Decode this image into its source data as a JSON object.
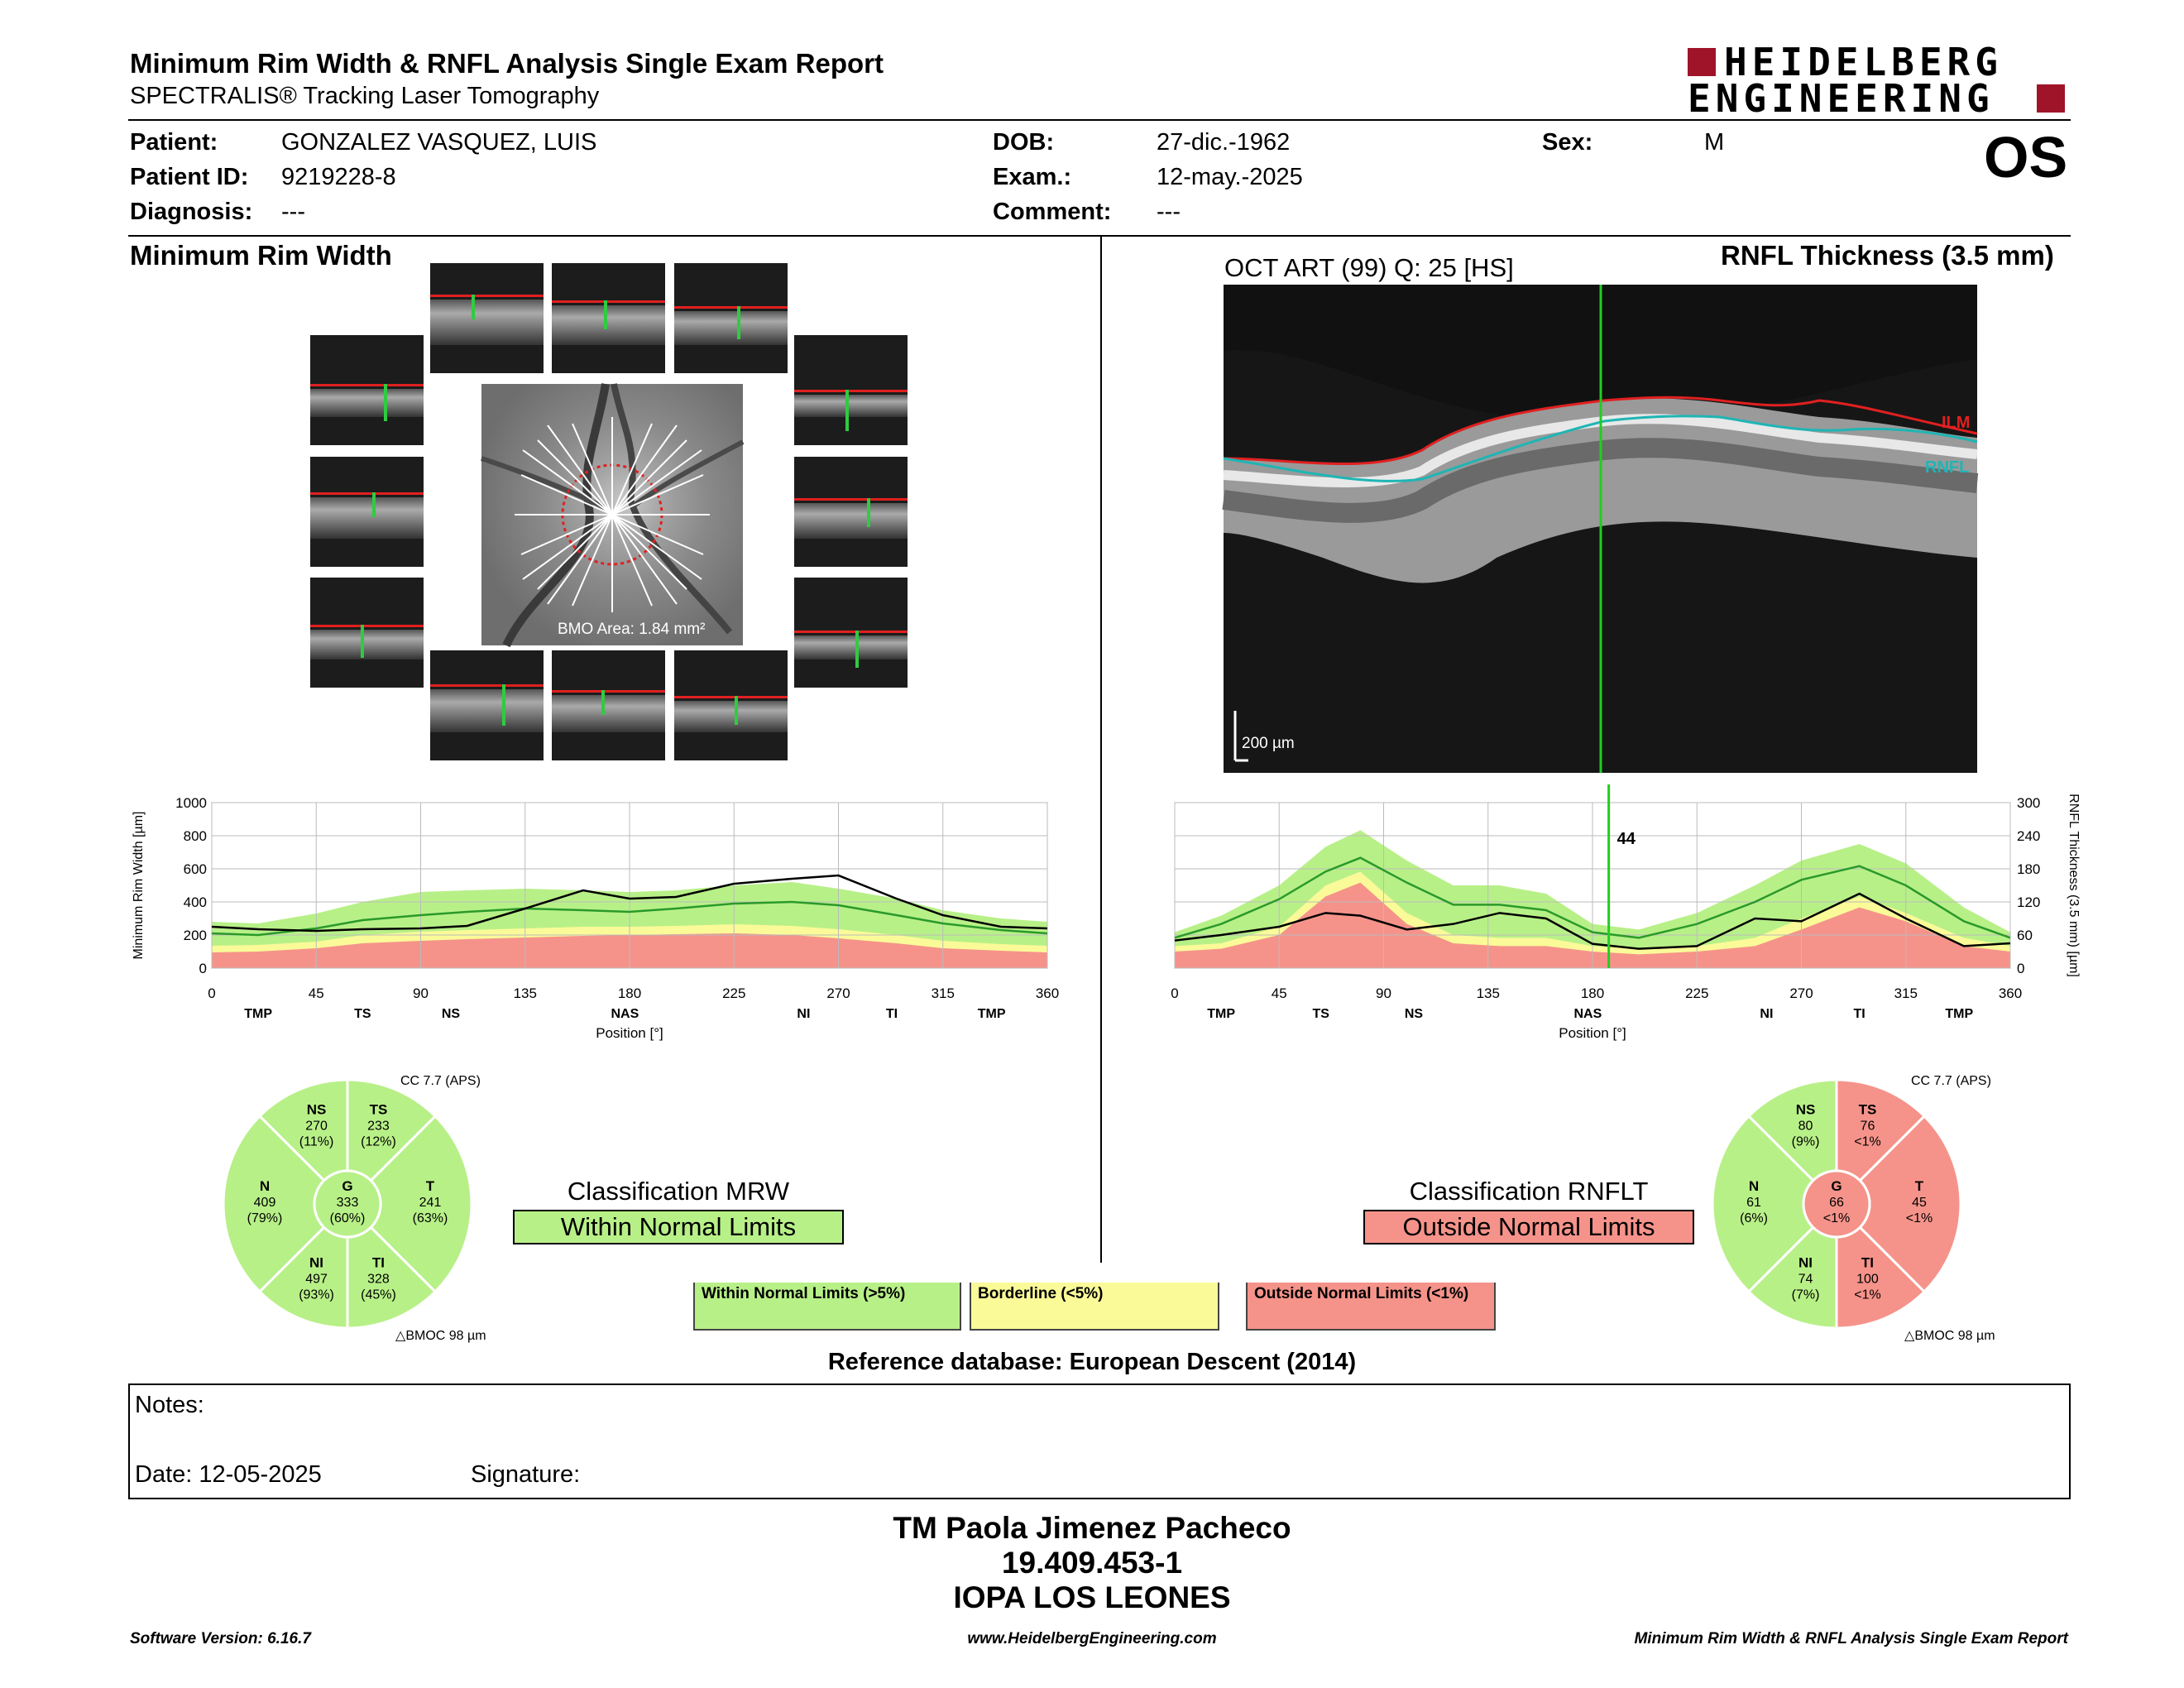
{
  "header": {
    "title": "Minimum Rim Width & RNFL Analysis Single Exam Report",
    "subtitle": "SPECTRALIS® Tracking Laser Tomography",
    "brand_line1": "HEIDELBERG",
    "brand_line2": "ENGINEERING",
    "eye": "OS"
  },
  "patient": {
    "patient_label": "Patient:",
    "patient_value": "GONZALEZ VASQUEZ, LUIS",
    "id_label": "Patient ID:",
    "id_value": "9219228-8",
    "diag_label": "Diagnosis:",
    "diag_value": "---",
    "dob_label": "DOB:",
    "dob_value": "27-dic.-1962",
    "exam_label": "Exam.:",
    "exam_value": "12-may.-2025",
    "comment_label": "Comment:",
    "comment_value": "---",
    "sex_label": "Sex:",
    "sex_value": "M"
  },
  "mrw": {
    "section_title": "Minimum Rim Width",
    "bmo_area": "BMO Area: 1.84 mm²",
    "cc": "CC 7.7 (APS)",
    "bmoc": "BMOC 98 µm",
    "classification_title": "Classification MRW",
    "classification_value": "Within Normal Limits",
    "sectors": {
      "NS": {
        "label": "NS",
        "value": "270",
        "pct": "(11%)"
      },
      "TS": {
        "label": "TS",
        "value": "233",
        "pct": "(12%)"
      },
      "N": {
        "label": "N",
        "value": "409",
        "pct": "(79%)"
      },
      "G": {
        "label": "G",
        "value": "333",
        "pct": "(60%)"
      },
      "T": {
        "label": "T",
        "value": "241",
        "pct": "(63%)"
      },
      "NI": {
        "label": "NI",
        "value": "497",
        "pct": "(93%)"
      },
      "TI": {
        "label": "TI",
        "value": "328",
        "pct": "(45%)"
      }
    }
  },
  "rnfl": {
    "section_title": "RNFL Thickness (3.5 mm)",
    "oct_caption": "OCT ART (99) Q: 25 [HS]",
    "scale_bar": "200 µm",
    "ilm_label": "ILM",
    "rnfl_label": "RNFL",
    "cursor_value": "44",
    "cc": "CC 7.7 (APS)",
    "bmoc": "BMOC 98 µm",
    "classification_title": "Classification RNFLT",
    "classification_value": "Outside Normal Limits",
    "sectors": {
      "NS": {
        "label": "NS",
        "value": "80",
        "pct": "(9%)"
      },
      "TS": {
        "label": "TS",
        "value": "76",
        "pct": "<1%"
      },
      "N": {
        "label": "N",
        "value": "61",
        "pct": "(6%)"
      },
      "G": {
        "label": "G",
        "value": "66",
        "pct": "<1%"
      },
      "T": {
        "label": "T",
        "value": "45",
        "pct": "<1%"
      },
      "NI": {
        "label": "NI",
        "value": "74",
        "pct": "(7%)"
      },
      "TI": {
        "label": "TI",
        "value": "100",
        "pct": "<1%"
      }
    }
  },
  "legend": {
    "wnl": "Within Normal Limits (>5%)",
    "bl": "Borderline (<5%)",
    "onl": "Outside Normal Limits (<1%)"
  },
  "reference_db": "Reference database: European Descent (2014)",
  "notes": {
    "notes_label": "Notes:",
    "date_label": "Date: 12-05-2025",
    "signature_label": "Signature:"
  },
  "signoff": {
    "name": "TM Paola Jimenez Pacheco",
    "rut": "19.409.453-1",
    "institution": "IOPA LOS LEONES"
  },
  "footer": {
    "left": "Software Version: 6.16.7",
    "center": "www.HeidelbergEngineering.com",
    "right": "Minimum Rim Width & RNFL Analysis Single Exam Report"
  },
  "colors": {
    "wnl": "#b8f088",
    "bl": "#fafa98",
    "onl": "#f5938a",
    "mean": "#2a9a2a",
    "measured": "#000000",
    "cursor": "#22cc22",
    "brand": "#a0142a"
  },
  "chart_data": [
    {
      "type": "line",
      "ylabel": "Minimum Rim Width [µm]",
      "xlabel": "Position [°]",
      "xlim": [
        0,
        360
      ],
      "ylim": [
        0,
        1000
      ],
      "xticks": [
        0,
        45,
        90,
        135,
        180,
        225,
        270,
        315,
        360
      ],
      "yticks": [
        0,
        200,
        400,
        600,
        800,
        1000
      ],
      "sector_labels": [
        {
          "x": 20,
          "label": "TMP"
        },
        {
          "x": 65,
          "label": "TS"
        },
        {
          "x": 103,
          "label": "NS"
        },
        {
          "x": 178,
          "label": "NAS"
        },
        {
          "x": 255,
          "label": "NI"
        },
        {
          "x": 293,
          "label": "TI"
        },
        {
          "x": 336,
          "label": "TMP"
        }
      ],
      "x": [
        0,
        20,
        45,
        65,
        90,
        110,
        135,
        160,
        180,
        200,
        225,
        250,
        270,
        295,
        315,
        340,
        360
      ],
      "series": [
        {
          "name": "Outside Normal Limits",
          "values": [
            95,
            100,
            120,
            150,
            165,
            175,
            185,
            195,
            200,
            205,
            210,
            200,
            180,
            150,
            120,
            105,
            95
          ]
        },
        {
          "name": "Borderline",
          "values": [
            135,
            140,
            160,
            200,
            220,
            230,
            240,
            250,
            250,
            255,
            265,
            255,
            235,
            200,
            165,
            145,
            135
          ]
        },
        {
          "name": "Within Normal Limits",
          "values": [
            280,
            270,
            330,
            400,
            460,
            470,
            480,
            470,
            460,
            470,
            500,
            520,
            480,
            420,
            350,
            300,
            280
          ]
        },
        {
          "name": "Mean",
          "values": [
            210,
            200,
            240,
            290,
            320,
            340,
            360,
            350,
            340,
            360,
            390,
            400,
            380,
            320,
            270,
            230,
            210
          ]
        },
        {
          "name": "Measured MRW",
          "values": [
            250,
            235,
            225,
            235,
            240,
            255,
            360,
            470,
            420,
            430,
            510,
            540,
            560,
            420,
            320,
            250,
            240
          ]
        }
      ]
    },
    {
      "type": "line",
      "ylabel": "RNFL Thickness (3.5 mm) [µm]",
      "xlabel": "Position [°]",
      "xlim": [
        0,
        360
      ],
      "ylim": [
        0,
        300
      ],
      "xticks": [
        0,
        45,
        90,
        135,
        180,
        225,
        270,
        315,
        360
      ],
      "yticks": [
        0,
        60,
        120,
        180,
        240,
        300
      ],
      "sector_labels": [
        {
          "x": 20,
          "label": "TMP"
        },
        {
          "x": 63,
          "label": "TS"
        },
        {
          "x": 103,
          "label": "NS"
        },
        {
          "x": 178,
          "label": "NAS"
        },
        {
          "x": 255,
          "label": "NI"
        },
        {
          "x": 295,
          "label": "TI"
        },
        {
          "x": 338,
          "label": "TMP"
        }
      ],
      "cursor_x": 187,
      "x": [
        0,
        20,
        45,
        65,
        80,
        100,
        120,
        140,
        160,
        180,
        200,
        225,
        250,
        270,
        295,
        315,
        340,
        360
      ],
      "series": [
        {
          "name": "Outside Normal Limits",
          "values": [
            30,
            35,
            60,
            130,
            155,
            80,
            45,
            40,
            40,
            30,
            25,
            30,
            40,
            70,
            110,
            85,
            40,
            30
          ]
        },
        {
          "name": "Borderline",
          "values": [
            40,
            45,
            75,
            150,
            175,
            100,
            60,
            55,
            55,
            40,
            35,
            40,
            55,
            90,
            130,
            100,
            55,
            40
          ]
        },
        {
          "name": "Within Normal Limits",
          "values": [
            65,
            95,
            150,
            220,
            250,
            195,
            150,
            150,
            135,
            80,
            70,
            100,
            150,
            195,
            225,
            190,
            110,
            65
          ]
        },
        {
          "name": "Mean",
          "values": [
            55,
            80,
            125,
            175,
            200,
            155,
            115,
            115,
            105,
            65,
            55,
            80,
            120,
            160,
            185,
            150,
            85,
            55
          ]
        },
        {
          "name": "Measured RNFLT",
          "values": [
            50,
            60,
            75,
            100,
            95,
            70,
            80,
            100,
            90,
            44,
            35,
            40,
            90,
            85,
            135,
            90,
            40,
            45
          ]
        }
      ]
    }
  ]
}
